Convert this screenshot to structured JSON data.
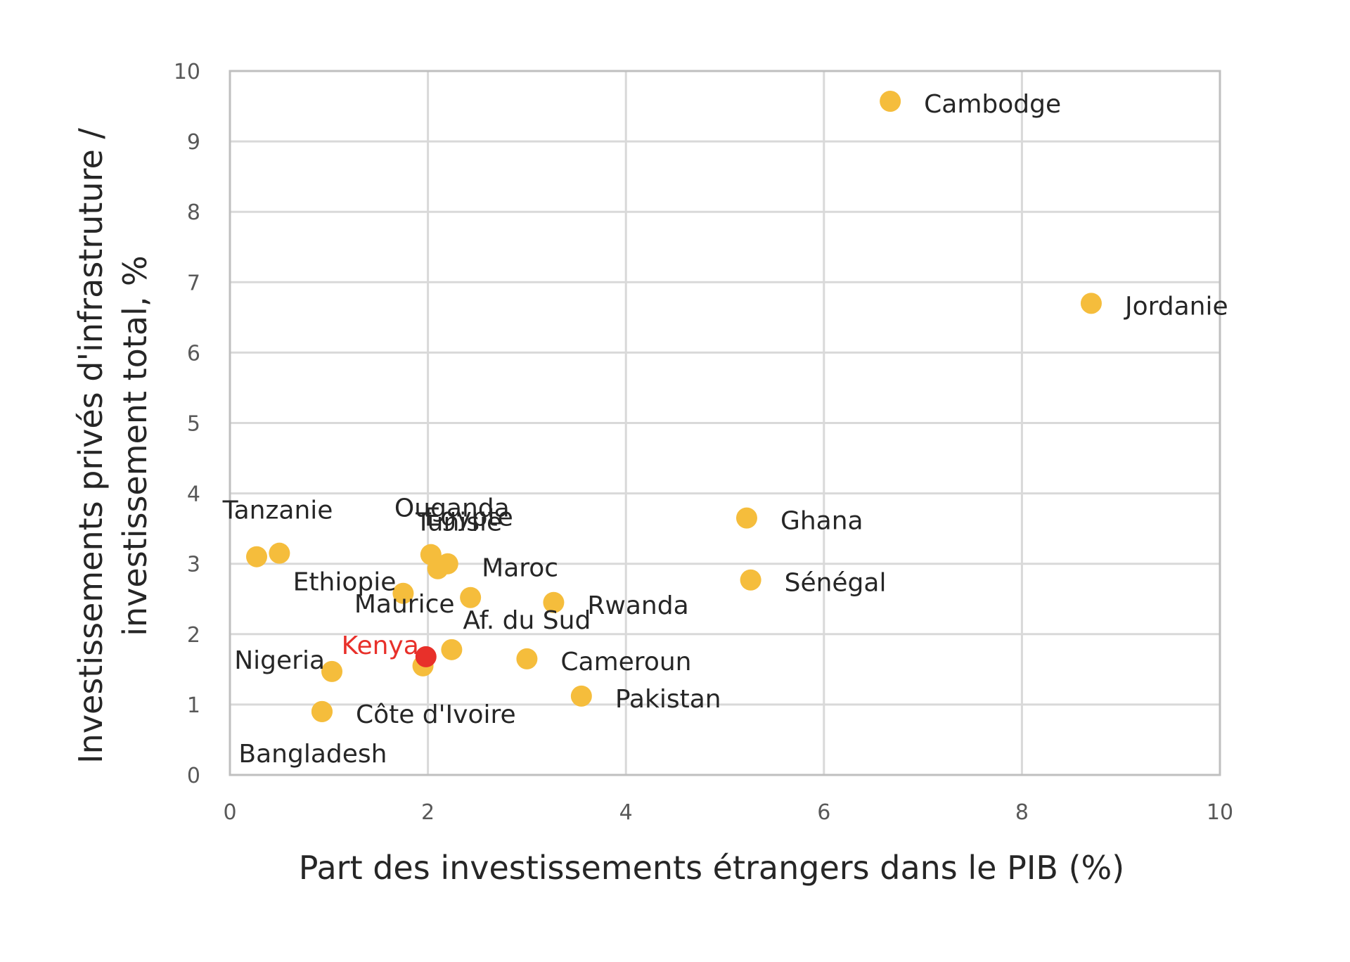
{
  "chart_data": {
    "type": "scatter",
    "title": "",
    "xlabel": "Part des investissements étrangers dans le PIB (%)",
    "ylabel_lines": [
      "Investissements privés d'infrastruture /",
      "investissement total, %"
    ],
    "xlim": [
      0,
      10
    ],
    "ylim": [
      0,
      10
    ],
    "xticks": [
      0,
      2,
      4,
      6,
      8,
      10
    ],
    "yticks": [
      0,
      1,
      2,
      3,
      4,
      5,
      6,
      7,
      8,
      9,
      10
    ],
    "grid": true,
    "legend": "none",
    "colors": {
      "default": "#f5bd3c",
      "highlight": "#e8302a",
      "grid": "#d9d9d9",
      "frame": "#bfbfbf"
    },
    "points": [
      {
        "label": "Cambodge",
        "x": 6.67,
        "y": 9.57,
        "label_position": "right"
      },
      {
        "label": "Jordanie",
        "x": 8.7,
        "y": 6.7,
        "label_position": "right"
      },
      {
        "label": "Ghana",
        "x": 5.22,
        "y": 3.65,
        "label_position": "right"
      },
      {
        "label": "Sénégal",
        "x": 5.26,
        "y": 2.77,
        "label_position": "right"
      },
      {
        "label": "Rwanda",
        "x": 3.27,
        "y": 2.45,
        "label_position": "right"
      },
      {
        "label": "Cameroun",
        "x": 3.0,
        "y": 1.65,
        "label_position": "right"
      },
      {
        "label": "Pakistan",
        "x": 3.55,
        "y": 1.12,
        "label_position": "right"
      },
      {
        "label": "Tanzanie",
        "x": 0.27,
        "y": 3.1,
        "label_position": "above"
      },
      {
        "label": "",
        "x": 0.5,
        "y": 3.15
      },
      {
        "label": "Ethiopie",
        "x": 1.75,
        "y": 2.58,
        "label_position": "left"
      },
      {
        "label": "Maurice",
        "x": 1.95,
        "y": 1.55,
        "label_position": "above-left"
      },
      {
        "label": "Ouganda",
        "x": 2.03,
        "y": 3.13,
        "label_position": "above"
      },
      {
        "label": "Egypte",
        "x": 2.2,
        "y": 3.0,
        "label_position": "above"
      },
      {
        "label": "Tunisie",
        "x": 2.1,
        "y": 2.93,
        "label_position": "above"
      },
      {
        "label": "Maroc",
        "x": 2.43,
        "y": 2.52,
        "label_position": "above-right"
      },
      {
        "label": "Af. du Sud",
        "x": 2.24,
        "y": 1.78,
        "label_position": "above-right"
      },
      {
        "label": "Nigeria",
        "x": 1.03,
        "y": 1.47,
        "label_position": "left"
      },
      {
        "label": "Côte d'Ivoire",
        "x": 0.93,
        "y": 0.9,
        "label_position": "right"
      },
      {
        "label": "Bangladesh",
        "x": 0.93,
        "y": 0.9,
        "label_position": "below"
      },
      {
        "label": "Kenya",
        "x": 1.98,
        "y": 1.68,
        "label_position": "left",
        "highlight": true
      }
    ]
  }
}
